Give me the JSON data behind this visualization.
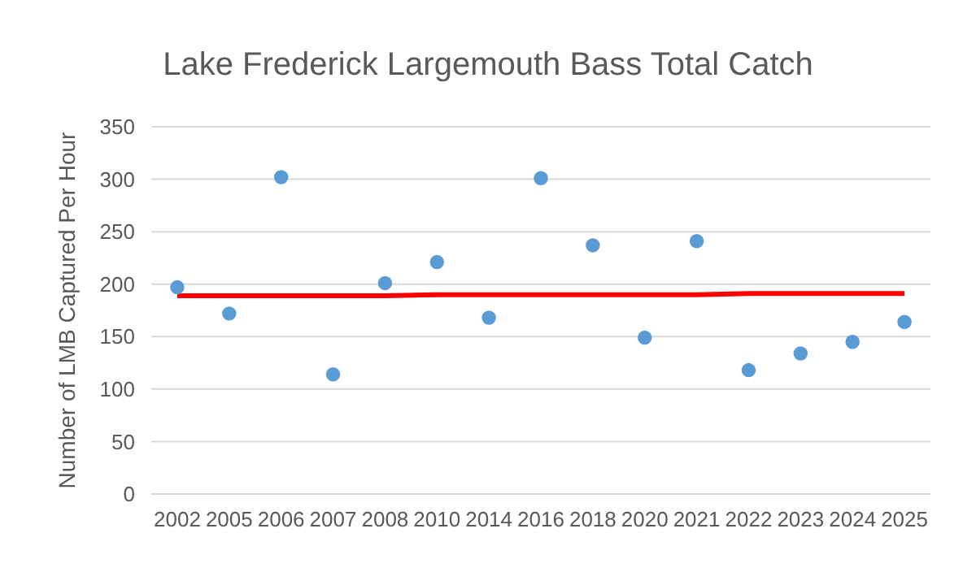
{
  "chart_data": {
    "type": "scatter",
    "title": "Lake Frederick Largemouth Bass Total Catch",
    "ylabel": "Number of LMB Captured Per Hour",
    "categories": [
      "2002",
      "2005",
      "2006",
      "2007",
      "2008",
      "2010",
      "2014",
      "2016",
      "2018",
      "2020",
      "2021",
      "2022",
      "2023",
      "2024",
      "2025"
    ],
    "series": [
      {
        "color": "#5b9bd5",
        "marker": "circle",
        "values": [
          197,
          172,
          302,
          114,
          201,
          221,
          168,
          301,
          237,
          149,
          241,
          118,
          134,
          145,
          164
        ]
      },
      {
        "type": "line",
        "color": "#ff0000",
        "marker": "none",
        "values": [
          189,
          189,
          189,
          189,
          189,
          190,
          190,
          190,
          190,
          190,
          190,
          191,
          191,
          191,
          191
        ]
      }
    ],
    "ylim": [
      0,
      350
    ],
    "yticks": [
      0,
      50,
      100,
      150,
      200,
      250,
      300,
      350
    ],
    "grid": "y"
  }
}
